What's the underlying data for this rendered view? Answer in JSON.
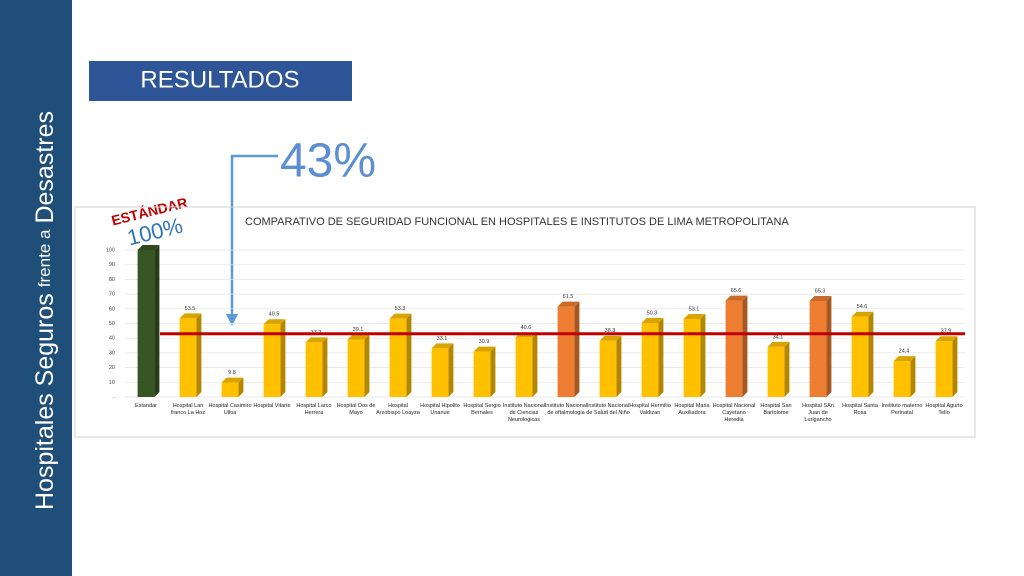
{
  "side_title": {
    "part1": "Hospitales Seguros",
    "part2": "frente a",
    "part3": "Desastres"
  },
  "header": "RESULTADOS",
  "standard_label": "ESTÁNDAR",
  "standard_value_label": "100%",
  "average_label": "43%",
  "chart_data": {
    "type": "bar",
    "title": "COMPARATIVO DE SEGURIDAD FUNCIONAL EN HOSPITALES E INSTITUTOS DE LIMA METROPOLITANA",
    "categories": [
      "Estandar",
      "Hospital Lan franco La Hoz",
      "Hospital Casimiro Ulloa",
      "Hospital Vitarte",
      "Hospital Larco Herrera",
      "Hospital Dos de Mayo",
      "Hospital Arzobispo Loayza",
      "Hospital Hipolito Unanue",
      "Hospital Sergio Bernales",
      "Instituto Nacional de Ciencias Neurologicas",
      "Instituto Nacional de oftalmologia",
      "Instituto Nacional de Salud del Niño",
      "Hospital Hermilio Valdizan",
      "Hospital Maria Auxiliadora",
      "Hospital Nacional Cayetano Heredia",
      "Hospital San Bartolome",
      "Hospital SAn Juan de Lurigancho",
      "Hospital Santa Rosa",
      "Instituto materno Perinatal",
      "Hospital Agurto Tello"
    ],
    "values": [
      100,
      53.5,
      9.8,
      49.5,
      37.2,
      39.1,
      53.3,
      33.1,
      30.9,
      40.6,
      61.5,
      38.3,
      50.3,
      53.1,
      65.6,
      34.1,
      65.3,
      54.6,
      24.4,
      37.9
    ],
    "value_labels": [
      null,
      "53.5",
      "9.8",
      "49.5",
      "37.2",
      "39.1",
      "53.3",
      "33.1",
      "30.9",
      "40.6",
      "61.5",
      "38.3",
      "50.3",
      "53.1",
      "65.6",
      "34.1",
      "65.3",
      "54.6",
      "24.4",
      "37.9"
    ],
    "colors": [
      "#375623",
      "#ffc000",
      "#ffc000",
      "#ffc000",
      "#ffc000",
      "#ffc000",
      "#ffc000",
      "#ffc000",
      "#ffc000",
      "#ffc000",
      "#ed7d31",
      "#ffc000",
      "#ffc000",
      "#ffc000",
      "#ed7d31",
      "#ffc000",
      "#ed7d31",
      "#ffc000",
      "#ffc000",
      "#ffc000"
    ],
    "reference_line": 43,
    "reference_color": "#c00000",
    "ylim": [
      0,
      100
    ],
    "yticks": [
      {
        "value": 0,
        "label": "-"
      },
      10,
      20,
      30,
      40,
      50,
      60,
      70,
      80,
      90,
      100
    ],
    "grid": true
  }
}
